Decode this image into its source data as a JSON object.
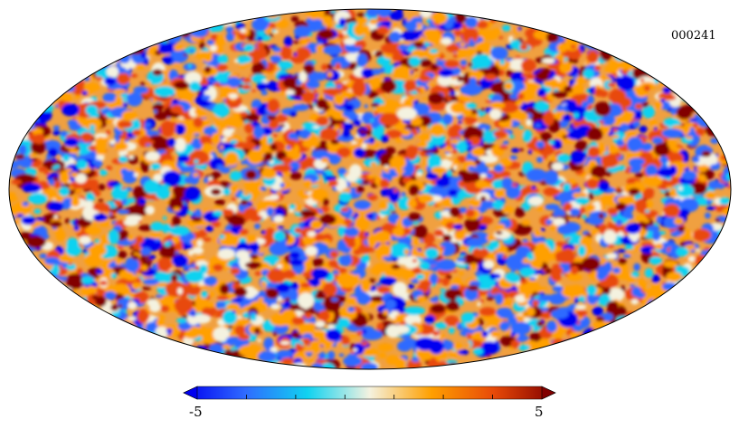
{
  "map": {
    "id_label": "000241",
    "projection": "mollweide",
    "description_colors": {
      "deep_blue": "#0000f0",
      "blue": "#2f6bff",
      "cyan": "#10d2f0",
      "pale": "#f4f2e0",
      "orange": "#ffa000",
      "red_orange": "#e84a08",
      "dark_red": "#820000"
    }
  },
  "colorbar": {
    "min_label": "-5",
    "max_label": "5",
    "min_value": -5,
    "max_value": 5,
    "stops": [
      "#0000f0",
      "#2f6bff",
      "#10d2f0",
      "#f4f2e0",
      "#ffa000",
      "#e84a08",
      "#820000"
    ]
  }
}
